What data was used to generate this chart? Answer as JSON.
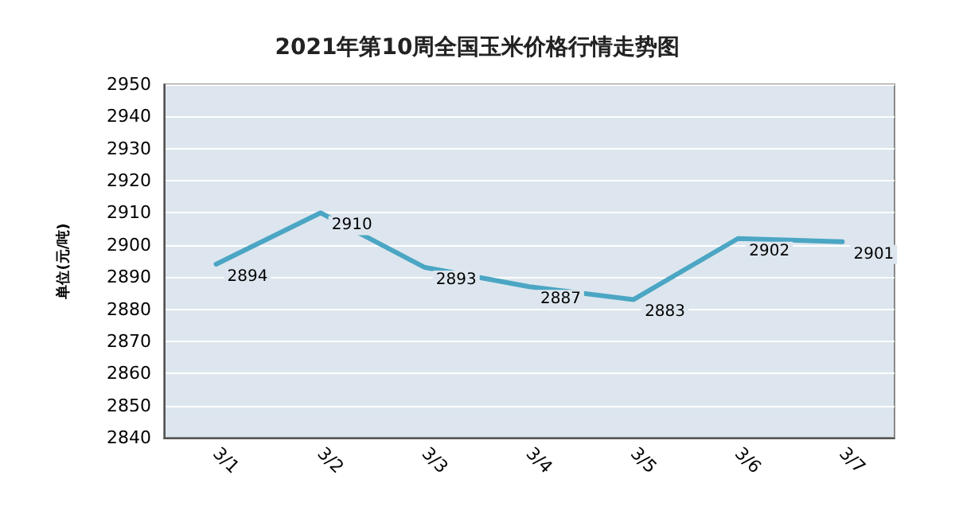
{
  "chart_data": {
    "type": "line",
    "title": "2021年第10周全国玉米价格行情走势图",
    "ylabel": "单位(元/吨)",
    "categories": [
      "3/1",
      "3/2",
      "3/3",
      "3/4",
      "3/5",
      "3/6",
      "3/7"
    ],
    "series": [
      {
        "color": "#4ba6c4",
        "values": [
          2894,
          2910,
          2893,
          2887,
          2883,
          2902,
          2901
        ]
      }
    ],
    "ylim": [
      2840,
      2950
    ],
    "yticks": [
      2840,
      2850,
      2860,
      2870,
      2880,
      2890,
      2900,
      2910,
      2920,
      2930,
      2940,
      2950
    ],
    "grid": "y",
    "data_labels": true,
    "marker": "none",
    "line_style": "solid"
  }
}
